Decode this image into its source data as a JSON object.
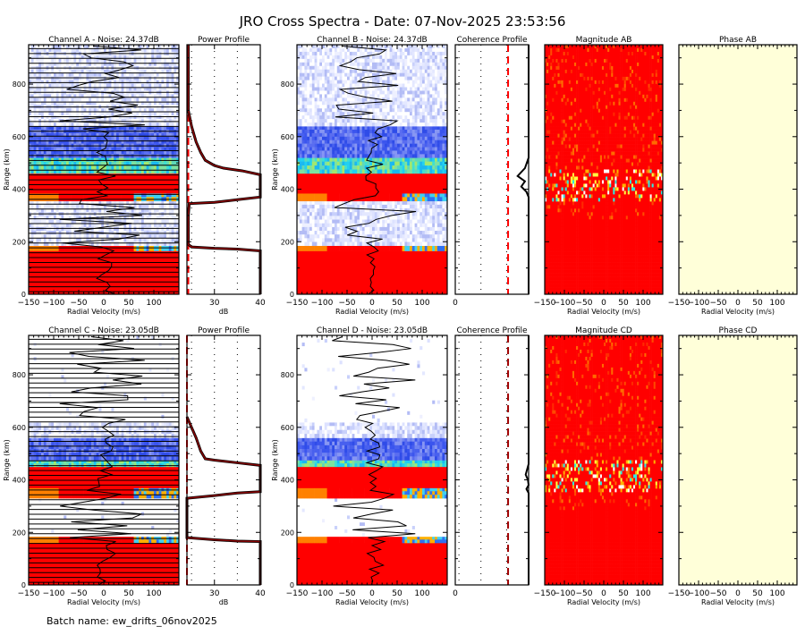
{
  "title": "JRO Cross Spectra - Date: 07-Nov-2025 23:53:56",
  "footer": "Batch name: ew_drifts_06nov2025",
  "colors": {
    "red": "#ff0000",
    "profile_line": "#8b0000",
    "phase_bg": "#ffffd9",
    "coh_threshold": "#ff0000"
  },
  "chart_data": [
    {
      "type": "heatmap",
      "id": "chA",
      "row": 0,
      "title": "Channel A - Noise: 24.37dB",
      "xlabel": "Radial Velocity (m/s)",
      "ylabel": "Range (km)",
      "xlim": [
        -150,
        150
      ],
      "ylim": [
        0,
        950
      ],
      "xticks": [
        -150,
        -100,
        -50,
        0,
        50,
        100
      ],
      "yticks": [
        0,
        200,
        400,
        600,
        800
      ],
      "bands": [
        {
          "from": 0,
          "to": 165,
          "level": "saturated"
        },
        {
          "from": 165,
          "to": 185,
          "level": "edge"
        },
        {
          "from": 185,
          "to": 355,
          "level": "noise"
        },
        {
          "from": 355,
          "to": 385,
          "level": "edge"
        },
        {
          "from": 385,
          "to": 460,
          "level": "saturated"
        },
        {
          "from": 460,
          "to": 520,
          "level": "cyan"
        },
        {
          "from": 520,
          "to": 640,
          "level": "blue"
        },
        {
          "from": 640,
          "to": 950,
          "level": "noise"
        }
      ]
    },
    {
      "type": "line",
      "id": "powA",
      "row": 0,
      "title": "Power Profile",
      "xlabel": "dB",
      "xlim": [
        24,
        40
      ],
      "xticks": [
        30,
        40
      ],
      "ylim": [
        0,
        950
      ],
      "series": [
        {
          "name": "power",
          "points": [
            [
              24.3,
              950
            ],
            [
              24.3,
              700
            ],
            [
              25,
              640
            ],
            [
              26,
              580
            ],
            [
              27,
              540
            ],
            [
              28,
              510
            ],
            [
              30,
              490
            ],
            [
              32,
              480
            ],
            [
              36,
              470
            ],
            [
              40,
              455
            ],
            [
              40,
              370
            ],
            [
              35,
              360
            ],
            [
              30,
              350
            ],
            [
              24.5,
              345
            ],
            [
              24.3,
              300
            ],
            [
              24.3,
              190
            ],
            [
              25,
              180
            ],
            [
              30,
              175
            ],
            [
              35,
              172
            ],
            [
              40,
              165
            ],
            [
              40,
              0
            ]
          ]
        }
      ],
      "threshold": 24.3
    },
    {
      "type": "heatmap",
      "id": "chB",
      "row": 0,
      "title": "Channel B - Noise: 24.37dB",
      "xlabel": "Radial Velocity (m/s)",
      "ylabel": "Range (km)",
      "xlim": [
        -150,
        150
      ],
      "ylim": [
        0,
        950
      ],
      "xticks": [
        -150,
        -100,
        -50,
        0,
        50,
        100
      ],
      "yticks": [
        0,
        200,
        400,
        600,
        800
      ],
      "bands": [
        {
          "from": 0,
          "to": 165,
          "level": "saturated"
        },
        {
          "from": 165,
          "to": 185,
          "level": "edge"
        },
        {
          "from": 185,
          "to": 355,
          "level": "noise"
        },
        {
          "from": 355,
          "to": 385,
          "level": "edge"
        },
        {
          "from": 385,
          "to": 460,
          "level": "saturated"
        },
        {
          "from": 460,
          "to": 520,
          "level": "cyan"
        },
        {
          "from": 520,
          "to": 640,
          "level": "blue"
        },
        {
          "from": 640,
          "to": 950,
          "level": "noise"
        }
      ]
    },
    {
      "type": "line",
      "id": "cohB",
      "row": 0,
      "title": "Coherence Profile",
      "xlabel": "",
      "xlim": [
        0,
        1
      ],
      "xticks": [
        0
      ],
      "ylim": [
        0,
        950
      ],
      "series": [
        {
          "name": "coherence",
          "points": [
            [
              1,
              950
            ],
            [
              1,
              520
            ],
            [
              0.95,
              480
            ],
            [
              0.85,
              450
            ],
            [
              0.95,
              430
            ],
            [
              0.9,
              410
            ],
            [
              0.97,
              390
            ],
            [
              1,
              370
            ],
            [
              1,
              0
            ]
          ]
        }
      ],
      "threshold": 0.72
    },
    {
      "type": "heatmap",
      "id": "magAB",
      "row": 0,
      "title": "Magnitude AB",
      "xlabel": "Radial Velocity (m/s)",
      "xlim": [
        -150,
        150
      ],
      "ylim": [
        0,
        950
      ],
      "xticks": [
        -150,
        -100,
        -50,
        0,
        50,
        100
      ]
    },
    {
      "type": "heatmap",
      "id": "phAB",
      "row": 0,
      "title": "Phase AB",
      "xlabel": "Radial Velocity (m/s)",
      "xlim": [
        -150,
        150
      ],
      "ylim": [
        0,
        950
      ],
      "xticks": [
        -150,
        -100,
        -50,
        0,
        50,
        100
      ]
    },
    {
      "type": "heatmap",
      "id": "chC",
      "row": 1,
      "title": "Channel C - Noise: 23.05dB",
      "xlabel": "Radial Velocity (m/s)",
      "ylabel": "Range (km)",
      "xlim": [
        -150,
        150
      ],
      "ylim": [
        0,
        950
      ],
      "xticks": [
        -150,
        -100,
        -50,
        0,
        50,
        100
      ],
      "yticks": [
        0,
        200,
        400,
        600,
        800
      ],
      "bands": [
        {
          "from": 0,
          "to": 160,
          "level": "saturated"
        },
        {
          "from": 160,
          "to": 185,
          "level": "edge"
        },
        {
          "from": 185,
          "to": 330,
          "level": "empty"
        },
        {
          "from": 330,
          "to": 370,
          "level": "edge"
        },
        {
          "from": 370,
          "to": 450,
          "level": "saturated"
        },
        {
          "from": 450,
          "to": 475,
          "level": "cyan"
        },
        {
          "from": 475,
          "to": 560,
          "level": "blue"
        },
        {
          "from": 560,
          "to": 620,
          "level": "noise"
        },
        {
          "from": 620,
          "to": 950,
          "level": "empty"
        }
      ]
    },
    {
      "type": "line",
      "id": "powC",
      "row": 1,
      "title": "Power Profile",
      "xlabel": "dB",
      "xlim": [
        24,
        40
      ],
      "xticks": [
        30,
        40
      ],
      "ylim": [
        0,
        950
      ],
      "series": [
        {
          "name": "power",
          "points": [
            [
              24,
              640
            ],
            [
              25,
              600
            ],
            [
              26,
              560
            ],
            [
              27,
              510
            ],
            [
              28,
              480
            ],
            [
              30,
              475
            ],
            [
              35,
              465
            ],
            [
              40,
              455
            ],
            [
              40,
              355
            ],
            [
              35,
              350
            ],
            [
              30,
              340
            ],
            [
              24,
              330
            ],
            [
              24,
              180
            ],
            [
              30,
              172
            ],
            [
              35,
              167
            ],
            [
              40,
              165
            ],
            [
              40,
              0
            ]
          ]
        }
      ],
      "threshold": 24
    },
    {
      "type": "heatmap",
      "id": "chD",
      "row": 1,
      "title": "Channel D - Noise: 23.05dB",
      "xlabel": "Radial Velocity (m/s)",
      "ylabel": "Range (km)",
      "xlim": [
        -150,
        150
      ],
      "ylim": [
        0,
        950
      ],
      "xticks": [
        -150,
        -100,
        -50,
        0,
        50,
        100
      ],
      "yticks": [
        0,
        200,
        400,
        600,
        800
      ],
      "bands": [
        {
          "from": 0,
          "to": 160,
          "level": "saturated"
        },
        {
          "from": 160,
          "to": 185,
          "level": "edge"
        },
        {
          "from": 185,
          "to": 330,
          "level": "empty"
        },
        {
          "from": 330,
          "to": 370,
          "level": "edge"
        },
        {
          "from": 370,
          "to": 450,
          "level": "saturated"
        },
        {
          "from": 450,
          "to": 475,
          "level": "cyan"
        },
        {
          "from": 475,
          "to": 560,
          "level": "blue"
        },
        {
          "from": 560,
          "to": 620,
          "level": "noise"
        },
        {
          "from": 620,
          "to": 950,
          "level": "empty"
        }
      ]
    },
    {
      "type": "line",
      "id": "cohD",
      "row": 1,
      "title": "Coherence Profile",
      "xlabel": "",
      "xlim": [
        0,
        1
      ],
      "xticks": [
        0
      ],
      "ylim": [
        0,
        950
      ],
      "series": [
        {
          "name": "coherence",
          "points": [
            [
              1,
              950
            ],
            [
              1,
              460
            ],
            [
              0.98,
              440
            ],
            [
              0.96,
              420
            ],
            [
              0.99,
              400
            ],
            [
              1,
              380
            ],
            [
              0.97,
              365
            ],
            [
              1,
              350
            ],
            [
              1,
              0
            ]
          ]
        }
      ],
      "threshold": 0.72
    },
    {
      "type": "heatmap",
      "id": "magCD",
      "row": 1,
      "title": "Magnitude CD",
      "xlabel": "Radial Velocity (m/s)",
      "xlim": [
        -150,
        150
      ],
      "ylim": [
        0,
        950
      ],
      "xticks": [
        -150,
        -100,
        -50,
        0,
        50,
        100
      ]
    },
    {
      "type": "heatmap",
      "id": "phCD",
      "row": 1,
      "title": "Phase CD",
      "xlabel": "Radial Velocity (m/s)",
      "xlim": [
        -150,
        150
      ],
      "ylim": [
        0,
        950
      ],
      "xticks": [
        -150,
        -100,
        -50,
        0,
        50,
        100
      ]
    }
  ]
}
